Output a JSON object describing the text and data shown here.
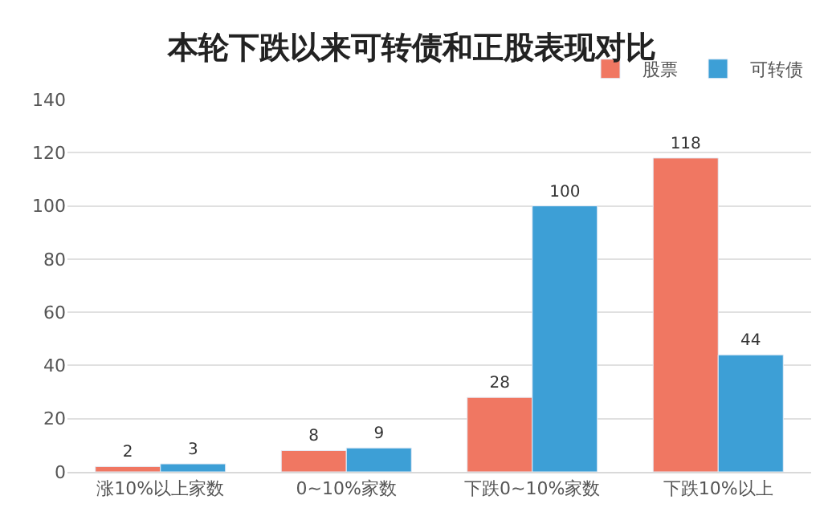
{
  "chart_data": {
    "type": "bar",
    "title": "本轮下跌以来可转债和正股表现对比",
    "categories": [
      "涨10%以上家数",
      "0~10%家数",
      "下跌0~10%家数",
      "下跌10%以上"
    ],
    "series": [
      {
        "name": "股票",
        "color": "#f07762",
        "values": [
          2,
          8,
          28,
          118
        ]
      },
      {
        "name": "可转债",
        "color": "#3d9fd6",
        "values": [
          3,
          9,
          100,
          44
        ]
      }
    ],
    "ylim": [
      0,
      140
    ],
    "yticks": [
      0,
      20,
      40,
      60,
      80,
      100,
      120,
      140
    ],
    "grid": "y",
    "legend": "top right",
    "data_labels": true
  }
}
